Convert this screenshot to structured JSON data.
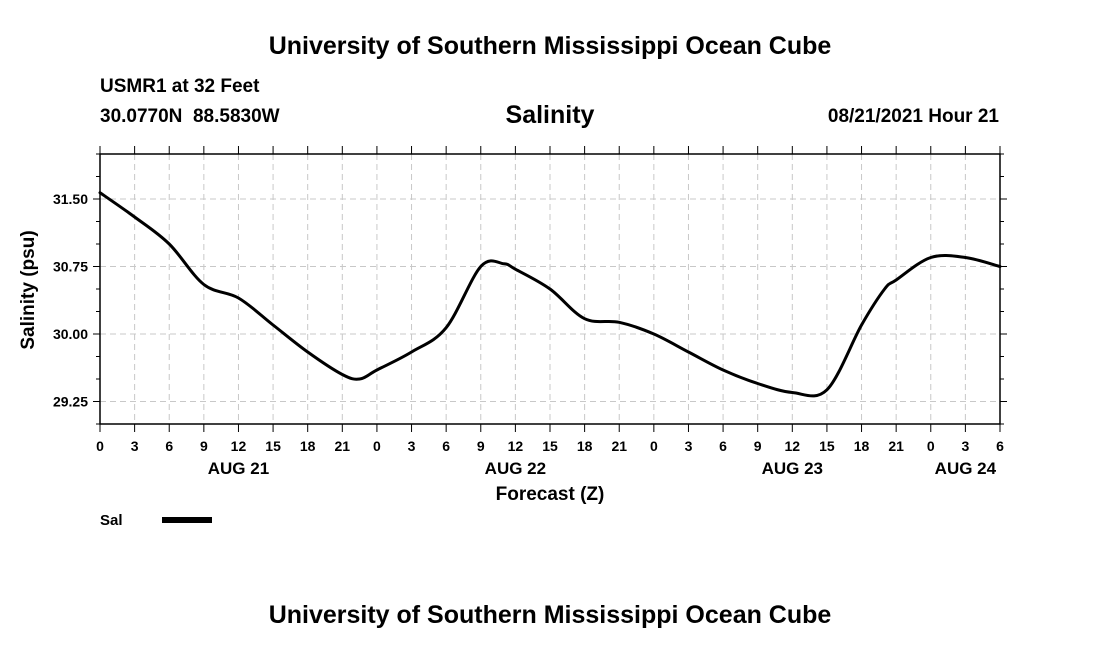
{
  "header": {
    "title": "University of Southern Mississippi Ocean Cube",
    "station": "USMR1 at 32 Feet",
    "coords": "30.0770N  88.5830W",
    "datetime": "08/21/2021 Hour 21"
  },
  "footer": {
    "title": "University of Southern Mississippi Ocean Cube"
  },
  "chart_data": {
    "type": "line",
    "title": "Salinity",
    "ylabel": "Salinity (psu)",
    "xlabel": "Forecast (Z)",
    "grid": true,
    "ylim": [
      29.0,
      32.0
    ],
    "xlim": [
      0,
      78
    ],
    "yticks": [
      29.25,
      30.0,
      30.75,
      31.5
    ],
    "ytick_labels": [
      "29.25",
      "30.00",
      "30.75",
      "31.50"
    ],
    "xtick_labels": [
      "0",
      "3",
      "6",
      "9",
      "12",
      "15",
      "18",
      "21",
      "0",
      "3",
      "6",
      "9",
      "12",
      "15",
      "18",
      "21",
      "0",
      "3",
      "6",
      "9",
      "12",
      "15",
      "18",
      "21",
      "0",
      "3",
      "6"
    ],
    "date_labels": [
      {
        "label": "AUG 21",
        "x": 12
      },
      {
        "label": "AUG 22",
        "x": 36
      },
      {
        "label": "AUG 23",
        "x": 60
      },
      {
        "label": "AUG 24",
        "x": 75
      }
    ],
    "legend": {
      "label": "Sal",
      "placement": "bottom-left"
    },
    "series": [
      {
        "name": "Sal",
        "color": "#000000",
        "x": [
          0,
          3,
          6,
          9,
          12,
          15,
          18,
          21,
          22.5,
          24,
          27,
          30,
          33,
          35,
          36,
          39,
          42,
          45,
          48,
          51,
          54,
          57,
          60,
          63,
          66,
          68,
          69,
          72,
          75,
          78
        ],
        "y": [
          31.57,
          31.3,
          31.0,
          30.55,
          30.4,
          30.1,
          29.8,
          29.55,
          29.5,
          29.6,
          29.8,
          30.07,
          30.75,
          30.78,
          30.72,
          30.5,
          30.17,
          30.13,
          30.0,
          29.8,
          29.6,
          29.45,
          29.35,
          29.38,
          30.1,
          30.5,
          30.6,
          30.85,
          30.85,
          30.75
        ]
      }
    ]
  }
}
